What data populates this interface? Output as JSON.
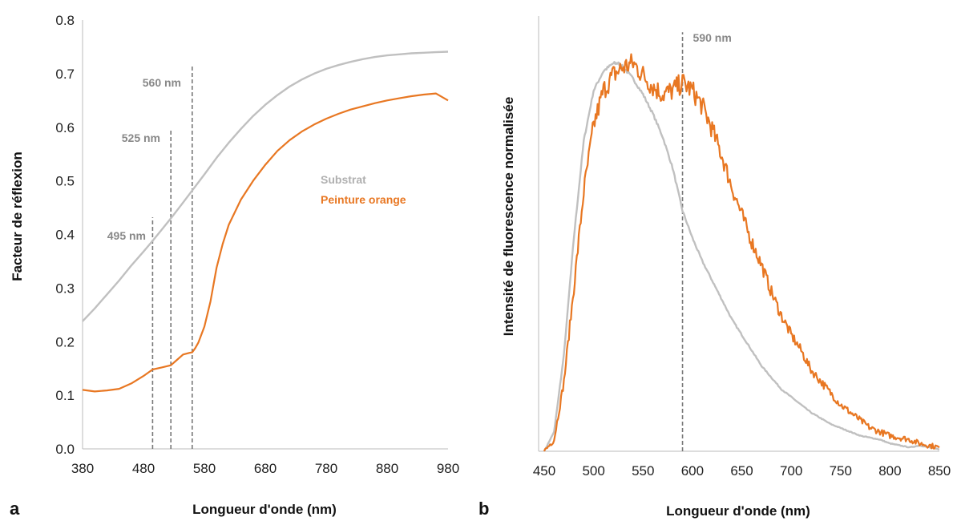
{
  "chart_data": [
    {
      "panel_label": "a",
      "type": "line",
      "xlabel": "Longueur d'onde (nm)",
      "ylabel": "Facteur de réflexion",
      "xlim": [
        380,
        980
      ],
      "ylim": [
        0.0,
        0.8
      ],
      "x_ticks": [
        "380",
        "480",
        "580",
        "680",
        "780",
        "880",
        "980"
      ],
      "y_ticks": [
        "0.0",
        "0.1",
        "0.2",
        "0.3",
        "0.4",
        "0.5",
        "0.6",
        "0.7",
        "0.8"
      ],
      "grid": false,
      "legend_position": "right",
      "series": [
        {
          "name": "Substrat",
          "color": "#c0c0c0",
          "x": [
            380,
            400,
            420,
            440,
            460,
            480,
            495,
            510,
            525,
            540,
            560,
            580,
            600,
            620,
            640,
            660,
            680,
            700,
            720,
            740,
            760,
            780,
            800,
            820,
            840,
            860,
            880,
            900,
            920,
            940,
            960,
            980
          ],
          "y": [
            0.238,
            0.262,
            0.288,
            0.314,
            0.342,
            0.368,
            0.388,
            0.409,
            0.43,
            0.452,
            0.482,
            0.512,
            0.543,
            0.571,
            0.597,
            0.621,
            0.642,
            0.66,
            0.676,
            0.689,
            0.7,
            0.709,
            0.716,
            0.722,
            0.727,
            0.731,
            0.734,
            0.736,
            0.738,
            0.739,
            0.74,
            0.741
          ]
        },
        {
          "name": "Peinture orange",
          "color": "#e87722",
          "x": [
            380,
            400,
            420,
            440,
            460,
            480,
            495,
            510,
            525,
            535,
            545,
            555,
            560,
            565,
            570,
            580,
            590,
            600,
            610,
            620,
            640,
            660,
            680,
            700,
            720,
            740,
            760,
            780,
            800,
            820,
            840,
            860,
            880,
            900,
            920,
            940,
            960,
            980
          ],
          "y": [
            0.11,
            0.107,
            0.109,
            0.112,
            0.122,
            0.136,
            0.148,
            0.152,
            0.156,
            0.166,
            0.176,
            0.179,
            0.18,
            0.188,
            0.198,
            0.228,
            0.275,
            0.338,
            0.382,
            0.418,
            0.465,
            0.5,
            0.53,
            0.556,
            0.576,
            0.592,
            0.605,
            0.616,
            0.625,
            0.633,
            0.639,
            0.645,
            0.65,
            0.654,
            0.658,
            0.661,
            0.663,
            0.65
          ]
        }
      ],
      "annotations": [
        {
          "x": 495,
          "label": "495 nm",
          "y_top": 0.432
        },
        {
          "x": 525,
          "label": "525 nm",
          "y_top": 0.596
        },
        {
          "x": 560,
          "label": "560 nm",
          "y_top": 0.715
        }
      ]
    },
    {
      "panel_label": "b",
      "type": "line",
      "xlabel": "Longueur d'onde (nm)",
      "ylabel": "Intensité de fluorescence normalisée",
      "xlim": [
        450,
        850
      ],
      "ylim": [
        0,
        1
      ],
      "x_ticks": [
        "450",
        "500",
        "550",
        "600",
        "650",
        "700",
        "750",
        "800",
        "850"
      ],
      "y_ticks": [],
      "grid": false,
      "series": [
        {
          "color": "#c0c0c0",
          "x": [
            450,
            460,
            470,
            480,
            490,
            500,
            510,
            520,
            525,
            530,
            540,
            550,
            560,
            570,
            580,
            590,
            600,
            610,
            620,
            630,
            640,
            650,
            660,
            670,
            680,
            690,
            700,
            710,
            720,
            730,
            740,
            750,
            760,
            770,
            780,
            790,
            800,
            810,
            820,
            830,
            840,
            850
          ],
          "y": [
            0.0,
            0.05,
            0.25,
            0.55,
            0.8,
            0.93,
            0.98,
            1.0,
            1.0,
            0.99,
            0.96,
            0.92,
            0.87,
            0.81,
            0.73,
            0.62,
            0.55,
            0.49,
            0.44,
            0.39,
            0.34,
            0.3,
            0.26,
            0.22,
            0.19,
            0.16,
            0.14,
            0.12,
            0.1,
            0.085,
            0.07,
            0.06,
            0.05,
            0.04,
            0.035,
            0.03,
            0.02,
            0.015,
            0.01,
            0.015,
            0.01,
            0.005
          ]
        },
        {
          "color": "#e87722",
          "x": [
            450,
            460,
            470,
            480,
            490,
            500,
            510,
            520,
            530,
            540,
            550,
            560,
            570,
            580,
            590,
            600,
            610,
            620,
            630,
            640,
            650,
            660,
            670,
            680,
            690,
            700,
            710,
            720,
            730,
            740,
            750,
            760,
            770,
            780,
            790,
            800,
            810,
            820,
            830,
            840,
            850
          ],
          "y": [
            0.0,
            0.03,
            0.18,
            0.42,
            0.67,
            0.84,
            0.93,
            0.97,
            0.99,
            1.0,
            0.97,
            0.94,
            0.92,
            0.93,
            0.95,
            0.93,
            0.89,
            0.83,
            0.76,
            0.68,
            0.61,
            0.54,
            0.48,
            0.41,
            0.35,
            0.3,
            0.26,
            0.21,
            0.18,
            0.15,
            0.12,
            0.1,
            0.08,
            0.06,
            0.05,
            0.04,
            0.035,
            0.03,
            0.02,
            0.015,
            0.01
          ]
        }
      ],
      "annotations": [
        {
          "x": 590,
          "label": "590 nm",
          "y_top": 1.08
        }
      ]
    }
  ]
}
